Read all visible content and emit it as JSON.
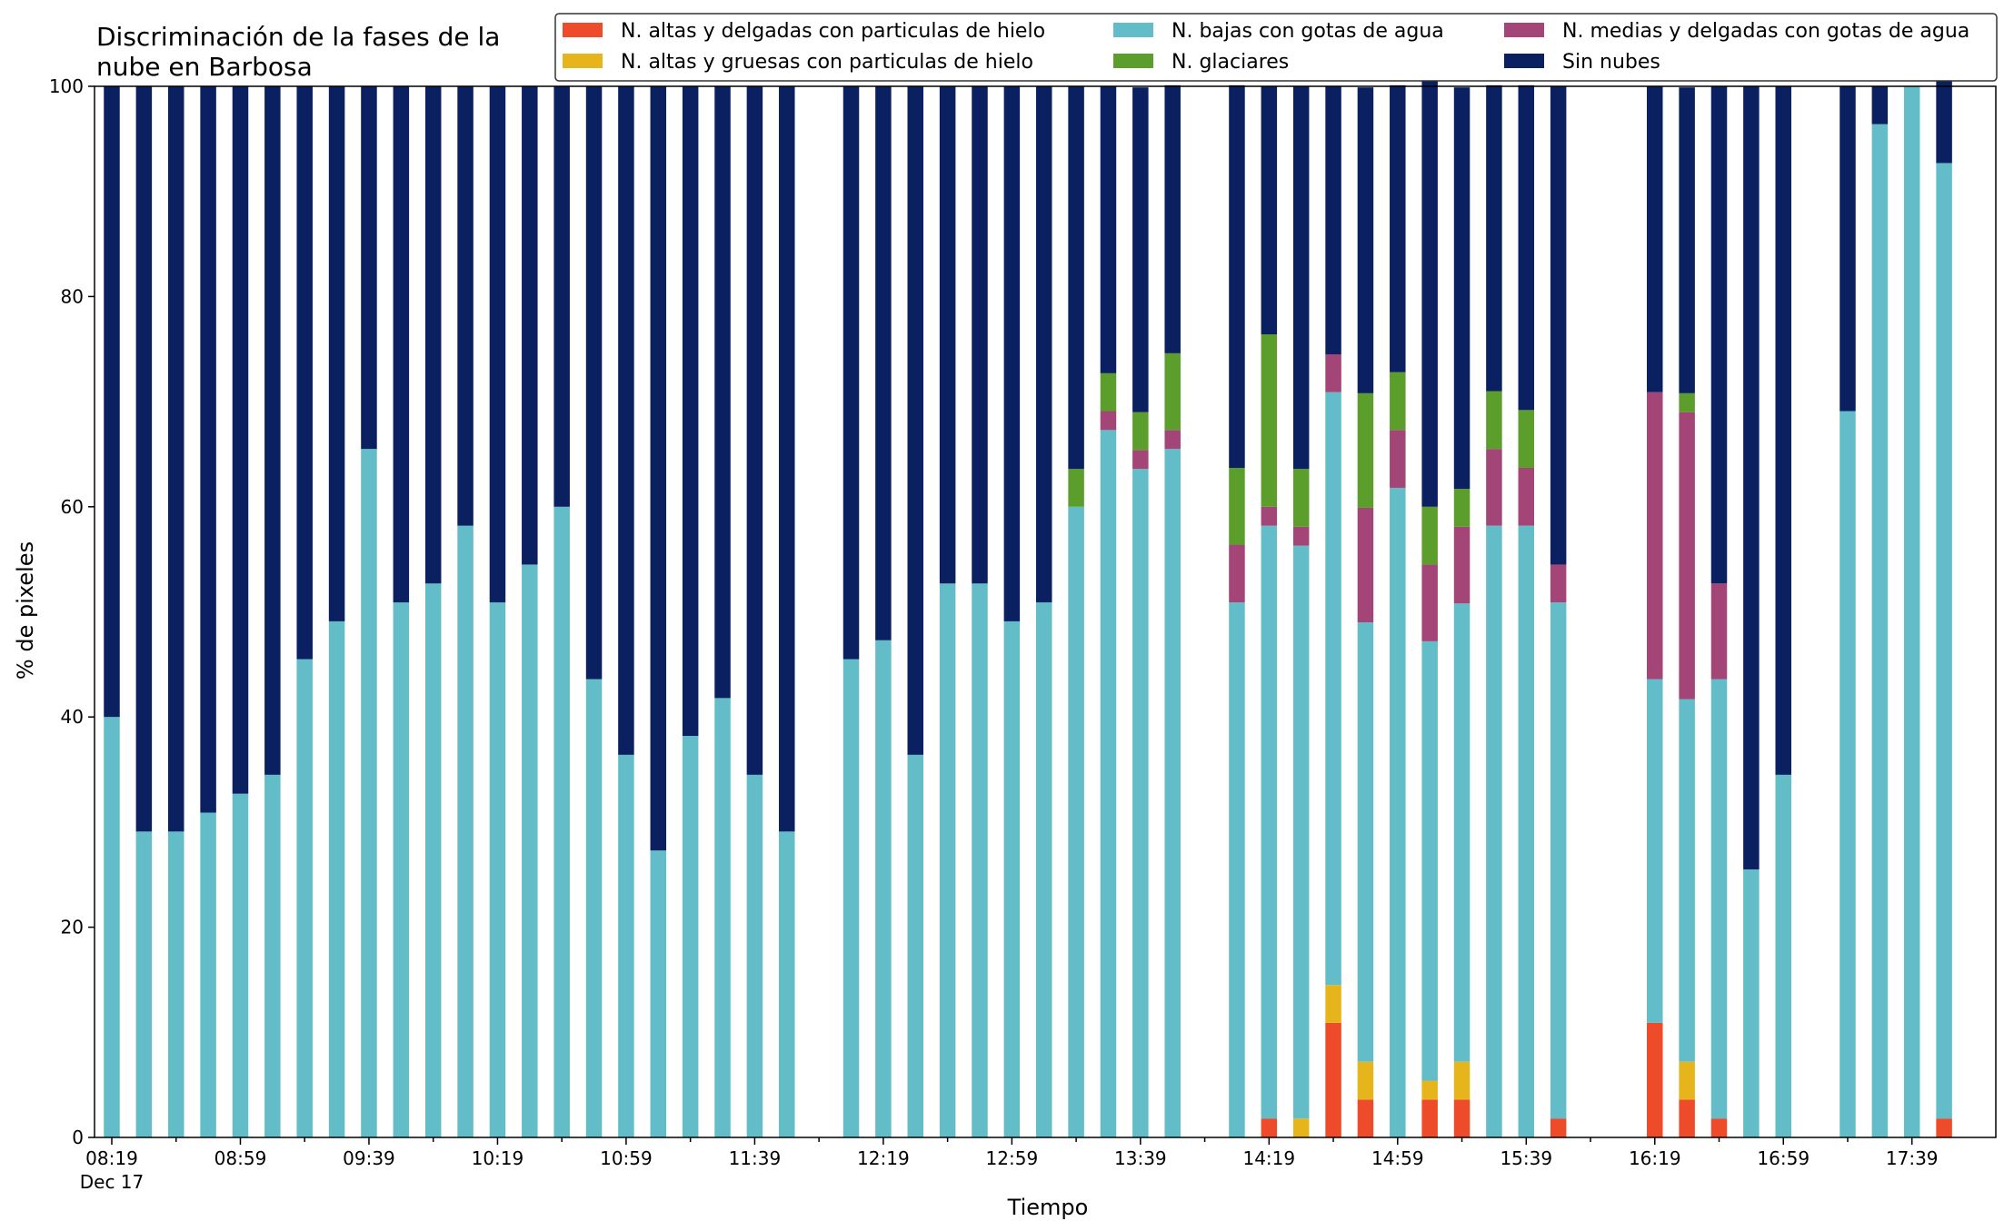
{
  "chart_data": {
    "type": "bar",
    "stacked": true,
    "title_lines": [
      "Discriminación de la fases de la",
      "nube en Barbosa"
    ],
    "xlabel": "Tiempo",
    "ylabel": "% de pixeles",
    "ylim": [
      0,
      100
    ],
    "yticks": [
      0,
      20,
      40,
      60,
      80,
      100
    ],
    "grid": false,
    "legend_position": "top-right",
    "x_start": "08:19",
    "x_step_minutes": 10,
    "x_count": 58,
    "xtick_labels": [
      "08:19",
      "08:59",
      "09:39",
      "10:19",
      "10:59",
      "11:39",
      "12:19",
      "12:59",
      "13:39",
      "14:19",
      "14:59",
      "15:39",
      "16:19",
      "16:59",
      "17:39"
    ],
    "xtick_sublabel": "Dec 17",
    "series": [
      {
        "name": "N. altas y delgadas con particulas de hielo",
        "color": "#ee4b2b",
        "values": [
          0,
          0,
          0,
          0,
          0,
          0,
          0,
          0,
          0,
          0,
          0,
          0,
          0,
          0,
          0,
          0,
          0,
          0,
          0,
          0,
          0,
          0,
          0,
          0,
          0,
          0,
          0,
          0,
          0,
          0,
          0,
          0,
          0,
          0,
          0,
          0,
          1.8,
          0,
          10.9,
          3.6,
          0,
          3.6,
          3.6,
          0,
          0,
          1.8,
          0,
          0,
          10.9,
          3.6,
          1.8,
          0,
          0,
          0,
          0,
          0,
          0,
          1.8
        ]
      },
      {
        "name": "N. altas y gruesas con particulas de hielo",
        "color": "#e6b51c",
        "values": [
          0,
          0,
          0,
          0,
          0,
          0,
          0,
          0,
          0,
          0,
          0,
          0,
          0,
          0,
          0,
          0,
          0,
          0,
          0,
          0,
          0,
          0,
          0,
          0,
          0,
          0,
          0,
          0,
          0,
          0,
          0,
          0,
          0,
          0,
          0,
          0,
          0,
          1.8,
          3.6,
          3.6,
          0,
          1.8,
          3.6,
          0,
          0,
          0,
          0,
          0,
          0,
          3.6,
          0,
          0,
          0,
          0,
          0,
          0,
          0,
          0
        ]
      },
      {
        "name": "N. bajas con gotas de agua",
        "color": "#62bdc9",
        "values": [
          40,
          29.1,
          29.1,
          30.9,
          32.7,
          34.5,
          45.5,
          49.1,
          65.5,
          50.9,
          52.7,
          58.2,
          50.9,
          54.5,
          60,
          43.6,
          36.4,
          27.3,
          38.2,
          41.8,
          34.5,
          29.1,
          0,
          45.5,
          47.3,
          36.4,
          52.7,
          52.7,
          49.1,
          50.9,
          60,
          67.3,
          63.6,
          65.5,
          0,
          50.9,
          56.4,
          54.5,
          56.4,
          41.8,
          61.8,
          41.8,
          43.6,
          58.2,
          58.2,
          49.1,
          0,
          0,
          32.7,
          34.5,
          41.8,
          25.5,
          34.5,
          0,
          69.1,
          96.4,
          100,
          90.9
        ]
      },
      {
        "name": "N. medias y delgadas con gotas de agua",
        "color": "#a34677",
        "values": [
          0,
          0,
          0,
          0,
          0,
          0,
          0,
          0,
          0,
          0,
          0,
          0,
          0,
          0,
          0,
          0,
          0,
          0,
          0,
          0,
          0,
          0,
          0,
          0,
          0,
          0,
          0,
          0,
          0,
          0,
          0,
          1.8,
          1.8,
          1.8,
          0,
          5.5,
          1.8,
          1.8,
          3.6,
          10.9,
          5.5,
          7.3,
          7.3,
          7.3,
          5.5,
          3.6,
          0,
          0,
          27.3,
          27.3,
          9.1,
          0,
          0,
          0,
          0,
          0,
          0,
          0
        ]
      },
      {
        "name": "N. glaciares",
        "color": "#5c9e2b",
        "values": [
          0,
          0,
          0,
          0,
          0,
          0,
          0,
          0,
          0,
          0,
          0,
          0,
          0,
          0,
          0,
          0,
          0,
          0,
          0,
          0,
          0,
          0,
          0,
          0,
          0,
          0,
          0,
          0,
          0,
          0,
          3.6,
          3.6,
          3.6,
          7.3,
          0,
          7.3,
          16.4,
          5.5,
          0,
          10.9,
          5.5,
          5.5,
          3.6,
          5.5,
          5.5,
          0,
          0,
          0,
          0,
          1.8,
          0,
          0,
          0,
          0,
          0,
          0,
          0,
          0
        ]
      },
      {
        "name": "Sin nubes",
        "color": "#0a2060",
        "values": [
          60,
          70.9,
          70.9,
          69.1,
          67.3,
          65.5,
          54.5,
          50.9,
          34.5,
          49.1,
          47.3,
          41.8,
          49.1,
          45.5,
          40,
          56.4,
          63.6,
          72.7,
          61.8,
          58.2,
          65.5,
          70.9,
          0,
          54.5,
          52.7,
          63.6,
          47.3,
          47.3,
          50.9,
          49.1,
          36.4,
          27.3,
          30.9,
          25.5,
          0,
          36.4,
          23.6,
          36.4,
          25.5,
          29.1,
          27.3,
          41.8,
          38.2,
          29.1,
          30.9,
          45.5,
          0,
          0,
          29.1,
          29.1,
          47.3,
          74.5,
          65.5,
          0,
          30.9,
          3.6,
          0,
          9.1
        ]
      }
    ]
  }
}
